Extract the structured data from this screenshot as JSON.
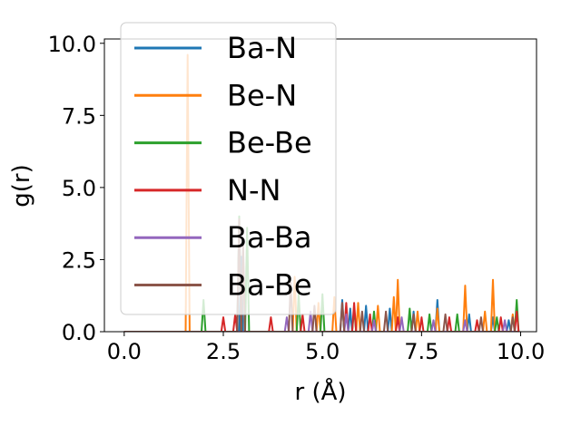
{
  "chart_data": {
    "type": "line",
    "title": "",
    "xlabel": "r (Å)",
    "ylabel": "g(r)",
    "xlim": [
      -0.5,
      10.4
    ],
    "ylim": [
      0,
      10.15
    ],
    "xticks": [
      0.0,
      2.5,
      5.0,
      7.5,
      10.0
    ],
    "xtick_labels": [
      "0.0",
      "2.5",
      "5.0",
      "7.5",
      "10.0"
    ],
    "yticks": [
      0.0,
      2.5,
      5.0,
      7.5,
      10.0
    ],
    "ytick_labels": [
      "0.0",
      "2.5",
      "5.0",
      "7.5",
      "10.0"
    ],
    "grid": false,
    "legend_position": "upper-left",
    "series": [
      {
        "name": "Ba-N",
        "color": "#1f77b4",
        "peaks": [
          [
            2.9,
            3.7
          ],
          [
            2.95,
            2.6
          ],
          [
            5.5,
            1.1
          ],
          [
            5.7,
            0.8
          ],
          [
            6.1,
            0.9
          ],
          [
            6.7,
            0.8
          ],
          [
            7.3,
            0.7
          ],
          [
            7.9,
            1.1
          ],
          [
            8.7,
            0.6
          ],
          [
            9.3,
            0.5
          ],
          [
            9.7,
            0.4
          ]
        ]
      },
      {
        "name": "Be-N",
        "color": "#ff7f0e",
        "peaks": [
          [
            1.6,
            9.6
          ],
          [
            3.0,
            2.7
          ],
          [
            4.3,
            1.9
          ],
          [
            4.9,
            1.0
          ],
          [
            5.3,
            1.2
          ],
          [
            5.9,
            1.0
          ],
          [
            6.4,
            0.9
          ],
          [
            6.8,
            1.2
          ],
          [
            6.9,
            1.8
          ],
          [
            7.4,
            0.7
          ],
          [
            7.9,
            0.8
          ],
          [
            8.6,
            1.6
          ],
          [
            9.1,
            0.7
          ],
          [
            9.3,
            1.8
          ],
          [
            9.8,
            0.6
          ]
        ]
      },
      {
        "name": "Be-Be",
        "color": "#2ca02c",
        "peaks": [
          [
            2.0,
            1.1
          ],
          [
            2.9,
            4.0
          ],
          [
            3.1,
            3.6
          ],
          [
            4.4,
            1.3
          ],
          [
            5.0,
            1.3
          ],
          [
            5.8,
            0.8
          ],
          [
            6.3,
            0.7
          ],
          [
            7.2,
            0.8
          ],
          [
            7.7,
            0.6
          ],
          [
            8.4,
            0.6
          ],
          [
            9.4,
            0.5
          ],
          [
            9.9,
            1.1
          ]
        ]
      },
      {
        "name": "N-N",
        "color": "#d62728",
        "peaks": [
          [
            2.5,
            0.5
          ],
          [
            2.8,
            0.6
          ],
          [
            3.7,
            0.5
          ],
          [
            4.5,
            0.6
          ],
          [
            5.6,
            1.0
          ],
          [
            5.8,
            1.0
          ],
          [
            6.2,
            0.6
          ],
          [
            6.9,
            0.5
          ],
          [
            7.5,
            0.5
          ],
          [
            8.2,
            0.5
          ],
          [
            8.9,
            0.4
          ],
          [
            9.5,
            0.5
          ],
          [
            9.9,
            0.7
          ]
        ]
      },
      {
        "name": "Ba-Ba",
        "color": "#9467bd",
        "peaks": [
          [
            4.1,
            0.5
          ],
          [
            4.7,
            0.7
          ],
          [
            5.6,
            0.6
          ],
          [
            6.3,
            0.4
          ],
          [
            7.0,
            0.5
          ],
          [
            7.8,
            0.4
          ],
          [
            8.6,
            0.4
          ],
          [
            9.6,
            0.4
          ]
        ]
      },
      {
        "name": "Ba-Be",
        "color": "#8c564b",
        "peaks": [
          [
            2.9,
            3.9
          ],
          [
            3.0,
            3.0
          ],
          [
            4.2,
            1.7
          ],
          [
            4.8,
            0.9
          ],
          [
            5.5,
            1.0
          ],
          [
            6.0,
            0.7
          ],
          [
            6.6,
            0.7
          ],
          [
            7.3,
            0.6
          ],
          [
            8.1,
            0.6
          ],
          [
            9.0,
            0.5
          ],
          [
            9.8,
            0.5
          ]
        ]
      }
    ]
  }
}
